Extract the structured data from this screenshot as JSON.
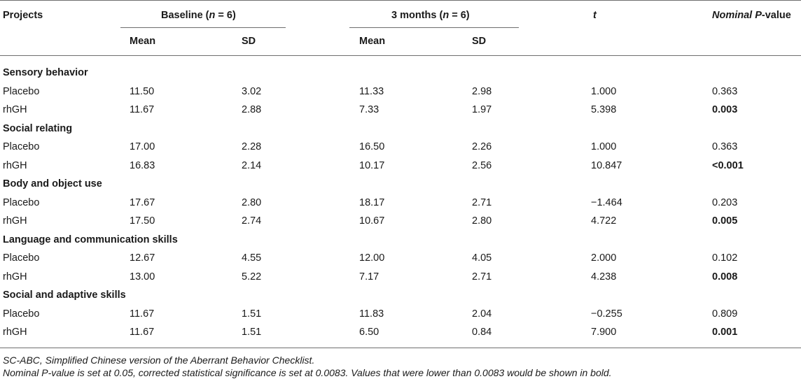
{
  "table": {
    "headers": {
      "projects": "Projects",
      "baseline_prefix": "Baseline (",
      "baseline_n": "n",
      "baseline_suffix": " = 6)",
      "months_prefix": "3 months (",
      "months_n": "n",
      "months_suffix": " = 6)",
      "t": "t",
      "pvalue_italic": "Nominal P",
      "pvalue_suffix": "-value",
      "mean": "Mean",
      "sd": "SD"
    },
    "sections": [
      {
        "title": "Sensory behavior",
        "rows": [
          {
            "label": "Placebo",
            "b_mean": "11.50",
            "b_sd": "3.02",
            "m_mean": "11.33",
            "m_sd": "2.98",
            "t": "1.000",
            "p": "0.363",
            "p_bold": false
          },
          {
            "label": "rhGH",
            "b_mean": "11.67",
            "b_sd": "2.88",
            "m_mean": "7.33",
            "m_sd": "1.97",
            "t": "5.398",
            "p": "0.003",
            "p_bold": true
          }
        ]
      },
      {
        "title": "Social relating",
        "rows": [
          {
            "label": "Placebo",
            "b_mean": "17.00",
            "b_sd": "2.28",
            "m_mean": "16.50",
            "m_sd": "2.26",
            "t": "1.000",
            "p": "0.363",
            "p_bold": false
          },
          {
            "label": "rhGH",
            "b_mean": "16.83",
            "b_sd": "2.14",
            "m_mean": "10.17",
            "m_sd": "2.56",
            "t": "10.847",
            "p": "<0.001",
            "p_bold": true
          }
        ]
      },
      {
        "title": "Body and object use",
        "rows": [
          {
            "label": "Placebo",
            "b_mean": "17.67",
            "b_sd": "2.80",
            "m_mean": "18.17",
            "m_sd": "2.71",
            "t": "−1.464",
            "p": "0.203",
            "p_bold": false
          },
          {
            "label": "rhGH",
            "b_mean": "17.50",
            "b_sd": "2.74",
            "m_mean": "10.67",
            "m_sd": "2.80",
            "t": "4.722",
            "p": "0.005",
            "p_bold": true
          }
        ]
      },
      {
        "title": "Language and communication skills",
        "rows": [
          {
            "label": "Placebo",
            "b_mean": "12.67",
            "b_sd": "4.55",
            "m_mean": "12.00",
            "m_sd": "4.05",
            "t": "2.000",
            "p": "0.102",
            "p_bold": false
          },
          {
            "label": "rhGH",
            "b_mean": "13.00",
            "b_sd": "5.22",
            "m_mean": "7.17",
            "m_sd": "2.71",
            "t": "4.238",
            "p": "0.008",
            "p_bold": true
          }
        ]
      },
      {
        "title": "Social and adaptive skills",
        "rows": [
          {
            "label": "Placebo",
            "b_mean": "11.67",
            "b_sd": "1.51",
            "m_mean": "11.83",
            "m_sd": "2.04",
            "t": "−0.255",
            "p": "0.809",
            "p_bold": false
          },
          {
            "label": "rhGH",
            "b_mean": "11.67",
            "b_sd": "1.51",
            "m_mean": "6.50",
            "m_sd": "0.84",
            "t": "7.900",
            "p": "0.001",
            "p_bold": true
          }
        ]
      }
    ]
  },
  "footnotes": [
    "SC-ABC, Simplified Chinese version of the Aberrant Behavior Checklist.",
    "Nominal P-value is set at 0.05, corrected statistical significance is set at 0.0083. Values that were lower than 0.0083 would be shown in bold."
  ]
}
